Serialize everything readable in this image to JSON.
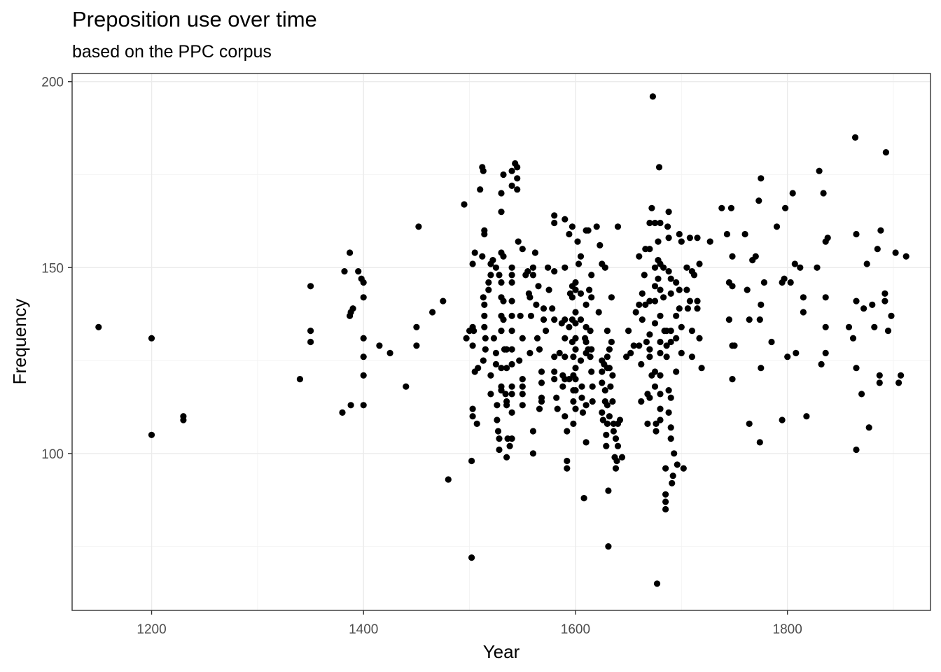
{
  "chart_data": {
    "type": "scatter",
    "title": "Preposition use over time",
    "subtitle": "based on the PPC corpus",
    "xlabel": "Year",
    "ylabel": "Frequency",
    "xlim": [
      1125,
      1935
    ],
    "ylim": [
      57.8,
      202.2
    ],
    "x_ticks": [
      1200,
      1400,
      1600,
      1800
    ],
    "y_ticks": [
      100,
      150,
      200
    ],
    "x_tick_labels": [
      "1200",
      "1400",
      "1600",
      "1800"
    ],
    "y_tick_labels": [
      "100",
      "150",
      "200"
    ],
    "grid": true,
    "point_color": "#000000",
    "points": [
      [
        1150,
        134
      ],
      [
        1200,
        131
      ],
      [
        1200,
        105
      ],
      [
        1230,
        110
      ],
      [
        1230,
        109
      ],
      [
        1340,
        120
      ],
      [
        1350,
        145
      ],
      [
        1350,
        133
      ],
      [
        1350,
        130
      ],
      [
        1380,
        111
      ],
      [
        1382,
        149
      ],
      [
        1387,
        154
      ],
      [
        1387,
        137
      ],
      [
        1388,
        138
      ],
      [
        1388,
        113
      ],
      [
        1390,
        139
      ],
      [
        1395,
        149
      ],
      [
        1398,
        147
      ],
      [
        1400,
        146
      ],
      [
        1400,
        142
      ],
      [
        1400,
        131
      ],
      [
        1400,
        126
      ],
      [
        1400,
        121
      ],
      [
        1400,
        113
      ],
      [
        1415,
        129
      ],
      [
        1425,
        127
      ],
      [
        1440,
        118
      ],
      [
        1450,
        134
      ],
      [
        1450,
        129
      ],
      [
        1452,
        161
      ],
      [
        1465,
        138
      ],
      [
        1475,
        141
      ],
      [
        1480,
        93
      ],
      [
        1495,
        167
      ],
      [
        1497,
        131
      ],
      [
        1500,
        133
      ],
      [
        1502,
        72
      ],
      [
        1502,
        98
      ],
      [
        1503,
        112
      ],
      [
        1503,
        110
      ],
      [
        1503,
        129
      ],
      [
        1503,
        151
      ],
      [
        1503,
        134
      ],
      [
        1504,
        133
      ],
      [
        1505,
        154
      ],
      [
        1505,
        122
      ],
      [
        1507,
        108
      ],
      [
        1508,
        123
      ],
      [
        1510,
        171
      ],
      [
        1512,
        177
      ],
      [
        1512,
        153
      ],
      [
        1513,
        176
      ],
      [
        1514,
        160
      ],
      [
        1514,
        159
      ],
      [
        1513,
        142
      ],
      [
        1514,
        140
      ],
      [
        1514,
        137
      ],
      [
        1514,
        134
      ],
      [
        1515,
        131
      ],
      [
        1515,
        128
      ],
      [
        1513,
        125
      ],
      [
        1518,
        146
      ],
      [
        1518,
        144
      ],
      [
        1520,
        148
      ],
      [
        1520,
        151
      ],
      [
        1520,
        121
      ],
      [
        1520,
        116
      ],
      [
        1522,
        152
      ],
      [
        1523,
        131
      ],
      [
        1525,
        150
      ],
      [
        1525,
        127
      ],
      [
        1525,
        124
      ],
      [
        1526,
        113
      ],
      [
        1526,
        109
      ],
      [
        1527,
        106
      ],
      [
        1528,
        148
      ],
      [
        1528,
        104
      ],
      [
        1528,
        101
      ],
      [
        1530,
        170
      ],
      [
        1530,
        165
      ],
      [
        1530,
        154
      ],
      [
        1530,
        146
      ],
      [
        1530,
        142
      ],
      [
        1530,
        137
      ],
      [
        1530,
        133
      ],
      [
        1530,
        123
      ],
      [
        1530,
        118
      ],
      [
        1530,
        117
      ],
      [
        1532,
        175
      ],
      [
        1532,
        153
      ],
      [
        1532,
        141
      ],
      [
        1532,
        136
      ],
      [
        1533,
        128
      ],
      [
        1534,
        116
      ],
      [
        1535,
        128
      ],
      [
        1535,
        123
      ],
      [
        1535,
        114
      ],
      [
        1535,
        113
      ],
      [
        1535,
        99
      ],
      [
        1536,
        104
      ],
      [
        1538,
        102
      ],
      [
        1540,
        176
      ],
      [
        1540,
        172
      ],
      [
        1540,
        150
      ],
      [
        1540,
        148
      ],
      [
        1540,
        146
      ],
      [
        1540,
        141
      ],
      [
        1540,
        137
      ],
      [
        1540,
        133
      ],
      [
        1540,
        128
      ],
      [
        1540,
        124
      ],
      [
        1540,
        118
      ],
      [
        1540,
        116
      ],
      [
        1540,
        111
      ],
      [
        1540,
        104
      ],
      [
        1543,
        178
      ],
      [
        1545,
        177
      ],
      [
        1545,
        171
      ],
      [
        1545,
        174
      ],
      [
        1546,
        157
      ],
      [
        1547,
        125
      ],
      [
        1548,
        137
      ],
      [
        1550,
        155
      ],
      [
        1550,
        131
      ],
      [
        1550,
        120
      ],
      [
        1550,
        118
      ],
      [
        1550,
        116
      ],
      [
        1550,
        113
      ],
      [
        1553,
        148
      ],
      [
        1555,
        149
      ],
      [
        1556,
        143
      ],
      [
        1557,
        142
      ],
      [
        1557,
        127
      ],
      [
        1558,
        137
      ],
      [
        1560,
        150
      ],
      [
        1560,
        148
      ],
      [
        1560,
        106
      ],
      [
        1560,
        100
      ],
      [
        1562,
        154
      ],
      [
        1563,
        140
      ],
      [
        1564,
        131
      ],
      [
        1565,
        145
      ],
      [
        1566,
        128
      ],
      [
        1566,
        112
      ],
      [
        1568,
        122
      ],
      [
        1568,
        119
      ],
      [
        1568,
        115
      ],
      [
        1568,
        114
      ],
      [
        1570,
        139
      ],
      [
        1570,
        136
      ],
      [
        1572,
        133
      ],
      [
        1574,
        150
      ],
      [
        1575,
        144
      ],
      [
        1578,
        139
      ],
      [
        1580,
        164
      ],
      [
        1580,
        162
      ],
      [
        1580,
        149
      ],
      [
        1580,
        136
      ],
      [
        1580,
        126
      ],
      [
        1580,
        122
      ],
      [
        1580,
        120
      ],
      [
        1582,
        115
      ],
      [
        1583,
        112
      ],
      [
        1585,
        127
      ],
      [
        1587,
        135
      ],
      [
        1588,
        121
      ],
      [
        1588,
        118
      ],
      [
        1590,
        163
      ],
      [
        1590,
        150
      ],
      [
        1590,
        136
      ],
      [
        1590,
        131
      ],
      [
        1590,
        126
      ],
      [
        1590,
        120
      ],
      [
        1590,
        110
      ],
      [
        1592,
        106
      ],
      [
        1592,
        98
      ],
      [
        1592,
        96
      ],
      [
        1594,
        159
      ],
      [
        1594,
        134
      ],
      [
        1594,
        120
      ],
      [
        1595,
        143
      ],
      [
        1597,
        161
      ],
      [
        1597,
        145
      ],
      [
        1597,
        142
      ],
      [
        1597,
        136
      ],
      [
        1597,
        130
      ],
      [
        1598,
        126
      ],
      [
        1598,
        121
      ],
      [
        1598,
        117
      ],
      [
        1598,
        114
      ],
      [
        1598,
        108
      ],
      [
        1600,
        146
      ],
      [
        1600,
        144
      ],
      [
        1600,
        138
      ],
      [
        1600,
        135
      ],
      [
        1600,
        131
      ],
      [
        1600,
        128
      ],
      [
        1600,
        123
      ],
      [
        1600,
        120
      ],
      [
        1600,
        117
      ],
      [
        1600,
        112
      ],
      [
        1602,
        157
      ],
      [
        1603,
        151
      ],
      [
        1605,
        153
      ],
      [
        1605,
        143
      ],
      [
        1605,
        136
      ],
      [
        1605,
        125
      ],
      [
        1606,
        118
      ],
      [
        1606,
        115
      ],
      [
        1607,
        111
      ],
      [
        1608,
        88
      ],
      [
        1609,
        131
      ],
      [
        1610,
        160
      ],
      [
        1610,
        140
      ],
      [
        1610,
        134
      ],
      [
        1610,
        130
      ],
      [
        1610,
        127
      ],
      [
        1610,
        113
      ],
      [
        1610,
        103
      ],
      [
        1612,
        160
      ],
      [
        1612,
        128
      ],
      [
        1613,
        144
      ],
      [
        1614,
        133
      ],
      [
        1614,
        126
      ],
      [
        1615,
        148
      ],
      [
        1615,
        142
      ],
      [
        1615,
        128
      ],
      [
        1615,
        122
      ],
      [
        1616,
        118
      ],
      [
        1616,
        114
      ],
      [
        1620,
        161
      ],
      [
        1622,
        138
      ],
      [
        1623,
        156
      ],
      [
        1625,
        151
      ],
      [
        1625,
        125
      ],
      [
        1625,
        122
      ],
      [
        1625,
        119
      ],
      [
        1625,
        111
      ],
      [
        1626,
        109
      ],
      [
        1627,
        124
      ],
      [
        1628,
        150
      ],
      [
        1628,
        117
      ],
      [
        1628,
        114
      ],
      [
        1629,
        105
      ],
      [
        1629,
        102
      ],
      [
        1630,
        133
      ],
      [
        1630,
        126
      ],
      [
        1630,
        123
      ],
      [
        1630,
        113
      ],
      [
        1630,
        108
      ],
      [
        1631,
        90
      ],
      [
        1631,
        75
      ],
      [
        1632,
        128
      ],
      [
        1632,
        123
      ],
      [
        1632,
        110
      ],
      [
        1633,
        118
      ],
      [
        1634,
        142
      ],
      [
        1634,
        130
      ],
      [
        1635,
        121
      ],
      [
        1635,
        114
      ],
      [
        1636,
        108
      ],
      [
        1636,
        106
      ],
      [
        1637,
        99
      ],
      [
        1638,
        96
      ],
      [
        1638,
        104
      ],
      [
        1639,
        98
      ],
      [
        1640,
        161
      ],
      [
        1640,
        108
      ],
      [
        1640,
        102
      ],
      [
        1642,
        109
      ],
      [
        1644,
        99
      ],
      [
        1648,
        126
      ],
      [
        1650,
        133
      ],
      [
        1652,
        127
      ],
      [
        1655,
        129
      ],
      [
        1657,
        138
      ],
      [
        1660,
        129
      ],
      [
        1660,
        153
      ],
      [
        1660,
        140
      ],
      [
        1662,
        124
      ],
      [
        1662,
        114
      ],
      [
        1663,
        143
      ],
      [
        1663,
        136
      ],
      [
        1665,
        148
      ],
      [
        1666,
        155
      ],
      [
        1666,
        140
      ],
      [
        1667,
        130
      ],
      [
        1668,
        116
      ],
      [
        1668,
        108
      ],
      [
        1670,
        162
      ],
      [
        1670,
        155
      ],
      [
        1670,
        141
      ],
      [
        1670,
        132
      ],
      [
        1670,
        128
      ],
      [
        1670,
        126
      ],
      [
        1670,
        115
      ],
      [
        1672,
        166
      ],
      [
        1672,
        121
      ],
      [
        1673,
        196
      ],
      [
        1675,
        162
      ],
      [
        1675,
        150
      ],
      [
        1675,
        145
      ],
      [
        1675,
        141
      ],
      [
        1675,
        135
      ],
      [
        1675,
        122
      ],
      [
        1675,
        118
      ],
      [
        1676,
        108
      ],
      [
        1676,
        106
      ],
      [
        1677,
        65
      ],
      [
        1678,
        157
      ],
      [
        1678,
        152
      ],
      [
        1678,
        147
      ],
      [
        1679,
        177
      ],
      [
        1680,
        162
      ],
      [
        1680,
        151
      ],
      [
        1680,
        144
      ],
      [
        1680,
        137
      ],
      [
        1680,
        130
      ],
      [
        1680,
        127
      ],
      [
        1680,
        121
      ],
      [
        1680,
        116
      ],
      [
        1680,
        112
      ],
      [
        1680,
        109
      ],
      [
        1683,
        150
      ],
      [
        1683,
        142
      ],
      [
        1684,
        133
      ],
      [
        1685,
        96
      ],
      [
        1685,
        89
      ],
      [
        1685,
        87
      ],
      [
        1685,
        85
      ],
      [
        1686,
        133
      ],
      [
        1686,
        129
      ],
      [
        1686,
        126
      ],
      [
        1687,
        161
      ],
      [
        1688,
        165
      ],
      [
        1688,
        158
      ],
      [
        1688,
        149
      ],
      [
        1688,
        117
      ],
      [
        1688,
        111
      ],
      [
        1690,
        147
      ],
      [
        1690,
        143
      ],
      [
        1690,
        133
      ],
      [
        1690,
        130
      ],
      [
        1690,
        115
      ],
      [
        1690,
        107
      ],
      [
        1690,
        104
      ],
      [
        1691,
        92
      ],
      [
        1692,
        94
      ],
      [
        1693,
        100
      ],
      [
        1695,
        146
      ],
      [
        1695,
        137
      ],
      [
        1695,
        131
      ],
      [
        1695,
        122
      ],
      [
        1696,
        97
      ],
      [
        1698,
        159
      ],
      [
        1698,
        144
      ],
      [
        1698,
        139
      ],
      [
        1700,
        157
      ],
      [
        1700,
        134
      ],
      [
        1700,
        127
      ],
      [
        1702,
        96
      ],
      [
        1705,
        150
      ],
      [
        1705,
        144
      ],
      [
        1706,
        139
      ],
      [
        1708,
        158
      ],
      [
        1708,
        141
      ],
      [
        1710,
        149
      ],
      [
        1710,
        133
      ],
      [
        1710,
        126
      ],
      [
        1712,
        148
      ],
      [
        1715,
        158
      ],
      [
        1715,
        141
      ],
      [
        1715,
        139
      ],
      [
        1717,
        151
      ],
      [
        1717,
        131
      ],
      [
        1719,
        123
      ],
      [
        1727,
        157
      ],
      [
        1738,
        166
      ],
      [
        1743,
        159
      ],
      [
        1745,
        146
      ],
      [
        1745,
        136
      ],
      [
        1747,
        166
      ],
      [
        1748,
        153
      ],
      [
        1748,
        145
      ],
      [
        1748,
        120
      ],
      [
        1748,
        129
      ],
      [
        1750,
        129
      ],
      [
        1760,
        159
      ],
      [
        1762,
        144
      ],
      [
        1764,
        136
      ],
      [
        1764,
        108
      ],
      [
        1767,
        152
      ],
      [
        1770,
        153
      ],
      [
        1773,
        168
      ],
      [
        1774,
        136
      ],
      [
        1774,
        103
      ],
      [
        1775,
        174
      ],
      [
        1775,
        140
      ],
      [
        1775,
        123
      ],
      [
        1778,
        146
      ],
      [
        1785,
        130
      ],
      [
        1790,
        161
      ],
      [
        1795,
        146
      ],
      [
        1795,
        109
      ],
      [
        1797,
        147
      ],
      [
        1798,
        166
      ],
      [
        1800,
        126
      ],
      [
        1803,
        146
      ],
      [
        1805,
        170
      ],
      [
        1807,
        151
      ],
      [
        1808,
        127
      ],
      [
        1812,
        150
      ],
      [
        1815,
        138
      ],
      [
        1815,
        142
      ],
      [
        1818,
        110
      ],
      [
        1828,
        150
      ],
      [
        1830,
        176
      ],
      [
        1832,
        124
      ],
      [
        1834,
        170
      ],
      [
        1836,
        134
      ],
      [
        1836,
        127
      ],
      [
        1836,
        142
      ],
      [
        1836,
        157
      ],
      [
        1838,
        158
      ],
      [
        1858,
        134
      ],
      [
        1862,
        131
      ],
      [
        1864,
        185
      ],
      [
        1865,
        159
      ],
      [
        1865,
        141
      ],
      [
        1865,
        123
      ],
      [
        1865,
        101
      ],
      [
        1870,
        116
      ],
      [
        1872,
        139
      ],
      [
        1875,
        151
      ],
      [
        1877,
        107
      ],
      [
        1880,
        140
      ],
      [
        1882,
        134
      ],
      [
        1885,
        155
      ],
      [
        1887,
        121
      ],
      [
        1887,
        119
      ],
      [
        1888,
        160
      ],
      [
        1892,
        143
      ],
      [
        1892,
        141
      ],
      [
        1893,
        181
      ],
      [
        1895,
        133
      ],
      [
        1898,
        137
      ],
      [
        1902,
        154
      ],
      [
        1905,
        119
      ],
      [
        1907,
        121
      ],
      [
        1912,
        153
      ]
    ]
  }
}
